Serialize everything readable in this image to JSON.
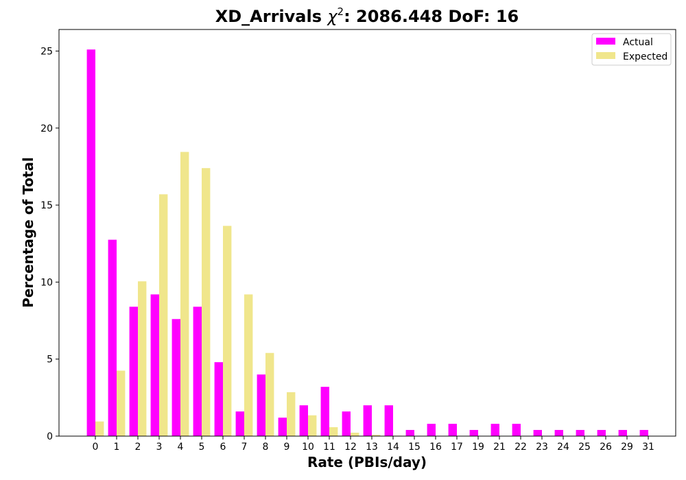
{
  "chart_data": {
    "type": "bar",
    "title": {
      "main": "XD_Arrivals ",
      "chi": "χ",
      "sup": "2",
      "rest": ": 2086.448 DoF: 16"
    },
    "xlabel": "Rate (PBIs/day)",
    "ylabel": "Percentage of Total",
    "ylim": [
      0,
      26.4
    ],
    "yticks": [
      0,
      5,
      10,
      15,
      20,
      25
    ],
    "categories": [
      "0",
      "1",
      "2",
      "3",
      "4",
      "5",
      "6",
      "7",
      "8",
      "9",
      "10",
      "11",
      "12",
      "13",
      "14",
      "15",
      "16",
      "17",
      "19",
      "21",
      "22",
      "23",
      "24",
      "25",
      "26",
      "29",
      "31"
    ],
    "series": [
      {
        "name": "Actual",
        "color": "#ff00ff",
        "values": [
          25.1,
          12.75,
          8.4,
          9.2,
          7.6,
          8.4,
          4.8,
          1.6,
          4.0,
          1.2,
          2.0,
          3.2,
          1.6,
          2.0,
          2.0,
          0.4,
          0.8,
          0.8,
          0.4,
          0.8,
          0.8,
          0.4,
          0.4,
          0.4,
          0.4,
          0.4,
          0.4
        ]
      },
      {
        "name": "Expected",
        "color": "#f0e68c",
        "values": [
          0.95,
          4.25,
          10.05,
          15.7,
          18.45,
          17.4,
          13.65,
          9.2,
          5.4,
          2.85,
          1.35,
          0.58,
          0.22,
          0.08,
          0.03,
          0.01,
          0.003,
          0.001,
          0.0,
          0.0,
          0.0,
          0.0,
          0.0,
          0.0,
          0.0,
          0.0,
          0.0
        ]
      }
    ],
    "legend_position": "top-right",
    "grid": false
  }
}
